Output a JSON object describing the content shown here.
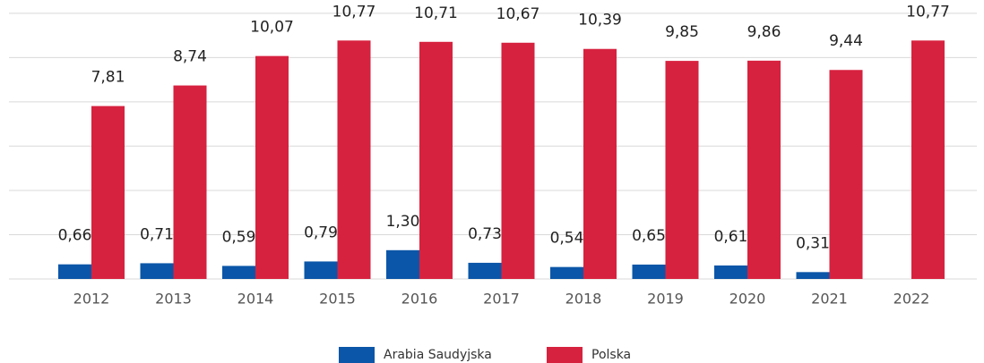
{
  "chart_data": {
    "type": "bar",
    "categories": [
      "2012",
      "2013",
      "2014",
      "2015",
      "2016",
      "2017",
      "2018",
      "2019",
      "2020",
      "2021",
      "2022"
    ],
    "series": [
      {
        "name": "Arabia Saudyjska",
        "color": "#0b56a8",
        "values": [
          0.66,
          0.71,
          0.59,
          0.79,
          1.3,
          0.73,
          0.54,
          0.65,
          0.61,
          0.31,
          null
        ],
        "value_labels": [
          "0,66",
          "0,71",
          "0,59",
          "0,79",
          "1,30",
          "0,73",
          "0,54",
          "0,65",
          "0,61",
          "0,31",
          null
        ]
      },
      {
        "name": "Polska",
        "color": "#d7223f",
        "values": [
          7.81,
          8.74,
          10.07,
          10.77,
          10.71,
          10.67,
          10.39,
          9.85,
          9.86,
          9.44,
          10.77
        ],
        "value_labels": [
          "7,81",
          "8,74",
          "10,07",
          "10,77",
          "10,71",
          "10,67",
          "10,39",
          "9,85",
          "9,86",
          "9,44",
          "10,77"
        ]
      }
    ],
    "ylim": [
      0,
      12.6
    ],
    "yticks": [
      0,
      2,
      4,
      6,
      8,
      10,
      12
    ],
    "grid": true,
    "legend": "bottom"
  }
}
